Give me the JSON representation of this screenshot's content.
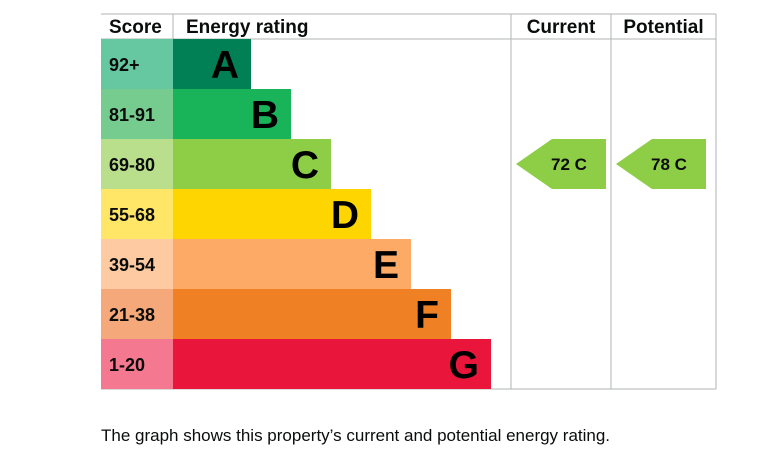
{
  "chart_data": {
    "type": "bar",
    "headers": {
      "score": "Score",
      "rating": "Energy rating",
      "current": "Current",
      "potential": "Potential"
    },
    "bands": [
      {
        "letter": "A",
        "score": "92+",
        "color": "#008054",
        "score_bg": "#65c8a0"
      },
      {
        "letter": "B",
        "score": "81-91",
        "color": "#19b459",
        "score_bg": "#75cc8e"
      },
      {
        "letter": "C",
        "score": "69-80",
        "color": "#8dce46",
        "score_bg": "#b9df8c"
      },
      {
        "letter": "D",
        "score": "55-68",
        "color": "#ffd500",
        "score_bg": "#ffe666"
      },
      {
        "letter": "E",
        "score": "39-54",
        "color": "#fcaa65",
        "score_bg": "#fdcaa2"
      },
      {
        "letter": "F",
        "score": "21-38",
        "color": "#ef8023",
        "score_bg": "#f5a97a"
      },
      {
        "letter": "G",
        "score": "1-20",
        "color": "#e9153b",
        "score_bg": "#f47990"
      }
    ],
    "current": {
      "value": 72,
      "band": "C",
      "label": "72  C",
      "color": "#8dce46"
    },
    "potential": {
      "value": 78,
      "band": "C",
      "label": "78  C",
      "color": "#8dce46"
    }
  },
  "caption": "The graph shows this property’s current and potential energy rating."
}
